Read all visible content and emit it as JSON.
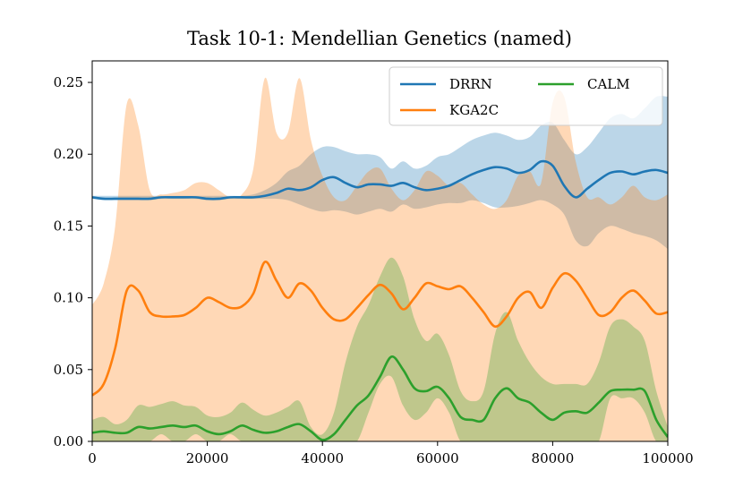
{
  "chart_data": {
    "type": "line",
    "title": "Task 10-1: Mendellian Genetics (named)",
    "xlabel": "",
    "ylabel": "",
    "xlim": [
      0,
      100000
    ],
    "ylim": [
      0,
      0.265
    ],
    "xticks": [
      0,
      20000,
      40000,
      60000,
      80000,
      100000
    ],
    "xtick_labels": [
      "0",
      "20000",
      "40000",
      "60000",
      "80000",
      "100000"
    ],
    "yticks": [
      0.0,
      0.05,
      0.1,
      0.15,
      0.2,
      0.25
    ],
    "ytick_labels": [
      "0.00",
      "0.05",
      "0.10",
      "0.15",
      "0.20",
      "0.25"
    ],
    "grid": false,
    "legend_position": "top-right",
    "x": [
      0,
      2000,
      4000,
      6000,
      8000,
      10000,
      12000,
      14000,
      16000,
      18000,
      20000,
      22000,
      24000,
      26000,
      28000,
      30000,
      32000,
      34000,
      36000,
      38000,
      40000,
      42000,
      44000,
      46000,
      48000,
      50000,
      52000,
      54000,
      56000,
      58000,
      60000,
      62000,
      64000,
      66000,
      68000,
      70000,
      72000,
      74000,
      76000,
      78000,
      80000,
      82000,
      84000,
      86000,
      88000,
      90000,
      92000,
      94000,
      96000,
      98000,
      100000
    ],
    "series": [
      {
        "name": "DRRN",
        "color": "#1f77b4",
        "values": [
          0.17,
          0.169,
          0.169,
          0.169,
          0.169,
          0.169,
          0.17,
          0.17,
          0.17,
          0.17,
          0.169,
          0.169,
          0.17,
          0.17,
          0.17,
          0.171,
          0.173,
          0.176,
          0.175,
          0.177,
          0.182,
          0.184,
          0.18,
          0.177,
          0.179,
          0.179,
          0.178,
          0.18,
          0.177,
          0.175,
          0.176,
          0.178,
          0.182,
          0.186,
          0.189,
          0.191,
          0.19,
          0.187,
          0.189,
          0.195,
          0.192,
          0.178,
          0.17,
          0.176,
          0.182,
          0.187,
          0.188,
          0.186,
          0.188,
          0.189,
          0.187
        ],
        "lower": [
          0.169,
          0.168,
          0.168,
          0.168,
          0.168,
          0.168,
          0.169,
          0.169,
          0.169,
          0.169,
          0.168,
          0.168,
          0.169,
          0.169,
          0.169,
          0.169,
          0.169,
          0.168,
          0.165,
          0.162,
          0.16,
          0.161,
          0.16,
          0.158,
          0.16,
          0.162,
          0.16,
          0.165,
          0.162,
          0.163,
          0.165,
          0.166,
          0.166,
          0.168,
          0.166,
          0.163,
          0.163,
          0.164,
          0.166,
          0.168,
          0.165,
          0.158,
          0.14,
          0.136,
          0.145,
          0.15,
          0.148,
          0.145,
          0.143,
          0.14,
          0.134
        ],
        "upper": [
          0.171,
          0.171,
          0.171,
          0.171,
          0.171,
          0.171,
          0.171,
          0.171,
          0.171,
          0.171,
          0.171,
          0.171,
          0.171,
          0.171,
          0.172,
          0.175,
          0.18,
          0.188,
          0.192,
          0.2,
          0.205,
          0.205,
          0.202,
          0.2,
          0.2,
          0.198,
          0.19,
          0.195,
          0.19,
          0.192,
          0.198,
          0.2,
          0.205,
          0.21,
          0.213,
          0.215,
          0.213,
          0.21,
          0.212,
          0.22,
          0.222,
          0.21,
          0.2,
          0.205,
          0.215,
          0.225,
          0.228,
          0.225,
          0.232,
          0.24,
          0.24
        ]
      },
      {
        "name": "KGA2C",
        "color": "#ff7f0e",
        "values": [
          0.032,
          0.04,
          0.065,
          0.105,
          0.105,
          0.09,
          0.087,
          0.087,
          0.088,
          0.093,
          0.1,
          0.097,
          0.093,
          0.094,
          0.103,
          0.125,
          0.112,
          0.1,
          0.11,
          0.105,
          0.093,
          0.085,
          0.085,
          0.093,
          0.102,
          0.109,
          0.103,
          0.092,
          0.1,
          0.11,
          0.108,
          0.106,
          0.108,
          0.1,
          0.09,
          0.08,
          0.087,
          0.1,
          0.104,
          0.093,
          0.107,
          0.117,
          0.112,
          0.1,
          0.088,
          0.09,
          0.1,
          0.105,
          0.098,
          0.089,
          0.09
        ],
        "lower": [
          0.0,
          0.0,
          0.0,
          0.0,
          0.0,
          0.0,
          0.0,
          0.0,
          0.0,
          0.0,
          0.0,
          0.0,
          0.0,
          0.0,
          0.0,
          0.0,
          0.0,
          0.0,
          0.0,
          0.0,
          0.0,
          0.0,
          0.0,
          0.0,
          0.0,
          0.0,
          0.0,
          0.0,
          0.0,
          0.0,
          0.0,
          0.0,
          0.0,
          0.0,
          0.0,
          0.0,
          0.0,
          0.0,
          0.0,
          0.0,
          0.0,
          0.0,
          0.0,
          0.0,
          0.0,
          0.0,
          0.0,
          0.0,
          0.0,
          0.0,
          0.0
        ],
        "upper": [
          0.095,
          0.11,
          0.15,
          0.235,
          0.22,
          0.175,
          0.172,
          0.173,
          0.175,
          0.18,
          0.18,
          0.175,
          0.17,
          0.172,
          0.19,
          0.253,
          0.215,
          0.215,
          0.253,
          0.21,
          0.185,
          0.17,
          0.168,
          0.178,
          0.188,
          0.19,
          0.176,
          0.168,
          0.175,
          0.188,
          0.185,
          0.178,
          0.18,
          0.172,
          0.165,
          0.162,
          0.168,
          0.185,
          0.188,
          0.18,
          0.236,
          0.24,
          0.195,
          0.17,
          0.17,
          0.165,
          0.17,
          0.178,
          0.17,
          0.168,
          0.172
        ]
      },
      {
        "name": "CALM",
        "color": "#2ca02c",
        "values": [
          0.006,
          0.007,
          0.006,
          0.006,
          0.01,
          0.009,
          0.01,
          0.011,
          0.01,
          0.011,
          0.007,
          0.005,
          0.007,
          0.011,
          0.008,
          0.006,
          0.007,
          0.01,
          0.012,
          0.007,
          0.001,
          0.005,
          0.015,
          0.025,
          0.032,
          0.045,
          0.059,
          0.05,
          0.037,
          0.035,
          0.038,
          0.03,
          0.017,
          0.015,
          0.015,
          0.03,
          0.037,
          0.03,
          0.027,
          0.02,
          0.015,
          0.02,
          0.021,
          0.02,
          0.027,
          0.035,
          0.036,
          0.036,
          0.035,
          0.015,
          0.003
        ],
        "lower": [
          0.0,
          0.0,
          0.0,
          0.0,
          0.0,
          0.0,
          0.005,
          0.0,
          0.0,
          0.005,
          0.0,
          0.0,
          0.005,
          0.0,
          0.0,
          0.0,
          0.0,
          0.0,
          0.0,
          0.0,
          0.0,
          0.0,
          0.0,
          0.0,
          0.02,
          0.04,
          0.045,
          0.025,
          0.015,
          0.02,
          0.03,
          0.02,
          0.0,
          0.0,
          0.0,
          0.0,
          0.0,
          0.0,
          0.0,
          0.0,
          0.0,
          0.0,
          0.0,
          0.0,
          0.0,
          0.03,
          0.03,
          0.03,
          0.02,
          0.0,
          0.0
        ],
        "upper": [
          0.015,
          0.017,
          0.012,
          0.015,
          0.025,
          0.024,
          0.026,
          0.028,
          0.025,
          0.024,
          0.018,
          0.017,
          0.02,
          0.027,
          0.022,
          0.018,
          0.02,
          0.024,
          0.028,
          0.01,
          0.005,
          0.02,
          0.055,
          0.08,
          0.095,
          0.115,
          0.128,
          0.115,
          0.085,
          0.07,
          0.075,
          0.06,
          0.035,
          0.028,
          0.035,
          0.075,
          0.09,
          0.07,
          0.055,
          0.045,
          0.04,
          0.04,
          0.04,
          0.04,
          0.055,
          0.08,
          0.085,
          0.08,
          0.07,
          0.035,
          0.01
        ]
      }
    ]
  }
}
